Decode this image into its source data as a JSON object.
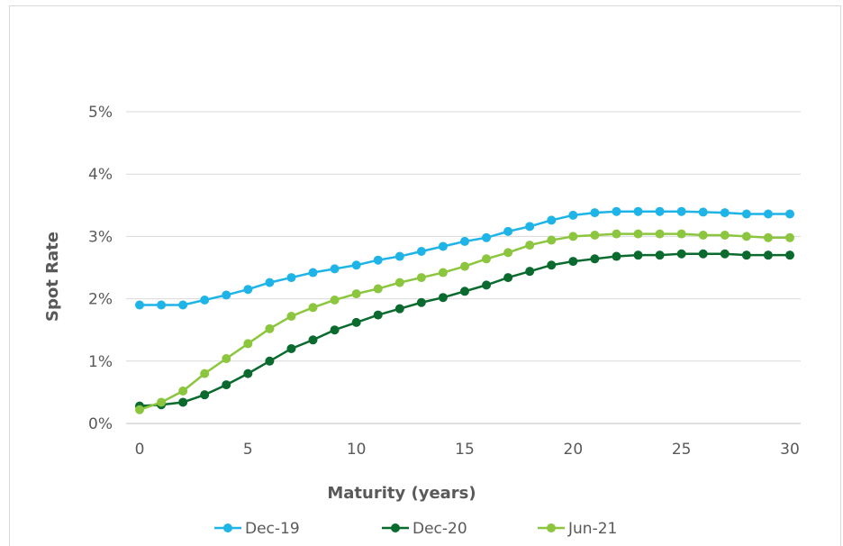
{
  "chart_data": {
    "type": "line",
    "title": "",
    "xlabel": "Maturity (years)",
    "ylabel": "Spot Rate",
    "xlim": [
      0,
      30
    ],
    "ylim": [
      0,
      5
    ],
    "x_ticks": [
      "0",
      "5",
      "10",
      "15",
      "20",
      "25",
      "30"
    ],
    "y_ticks": [
      "0%",
      "1%",
      "2%",
      "3%",
      "4%",
      "5%"
    ],
    "grid": true,
    "legend_position": "bottom",
    "x": [
      0,
      1,
      2,
      3,
      4,
      5,
      6,
      7,
      8,
      9,
      10,
      11,
      12,
      13,
      14,
      15,
      16,
      17,
      18,
      19,
      20,
      21,
      22,
      23,
      24,
      25,
      26,
      27,
      28,
      29,
      30
    ],
    "series": [
      {
        "name": "Dec-19",
        "color": "#1fb4e8",
        "values": [
          1.9,
          1.9,
          1.9,
          1.98,
          2.06,
          2.15,
          2.26,
          2.34,
          2.42,
          2.48,
          2.54,
          2.62,
          2.68,
          2.76,
          2.84,
          2.92,
          2.98,
          3.08,
          3.16,
          3.26,
          3.34,
          3.38,
          3.4,
          3.4,
          3.4,
          3.4,
          3.39,
          3.38,
          3.36,
          3.36,
          3.36
        ]
      },
      {
        "name": "Dec-20",
        "color": "#0b6b2f",
        "values": [
          0.28,
          0.3,
          0.34,
          0.46,
          0.62,
          0.8,
          1.0,
          1.2,
          1.34,
          1.5,
          1.62,
          1.74,
          1.84,
          1.94,
          2.02,
          2.12,
          2.22,
          2.34,
          2.44,
          2.54,
          2.6,
          2.64,
          2.68,
          2.7,
          2.7,
          2.72,
          2.72,
          2.72,
          2.7,
          2.7,
          2.7
        ]
      },
      {
        "name": "Jun-21",
        "color": "#8cc63e",
        "values": [
          0.22,
          0.34,
          0.52,
          0.8,
          1.04,
          1.28,
          1.52,
          1.72,
          1.86,
          1.98,
          2.08,
          2.16,
          2.26,
          2.34,
          2.42,
          2.52,
          2.64,
          2.74,
          2.86,
          2.94,
          3.0,
          3.02,
          3.04,
          3.04,
          3.04,
          3.04,
          3.02,
          3.02,
          3.0,
          2.98,
          2.98
        ]
      }
    ]
  }
}
